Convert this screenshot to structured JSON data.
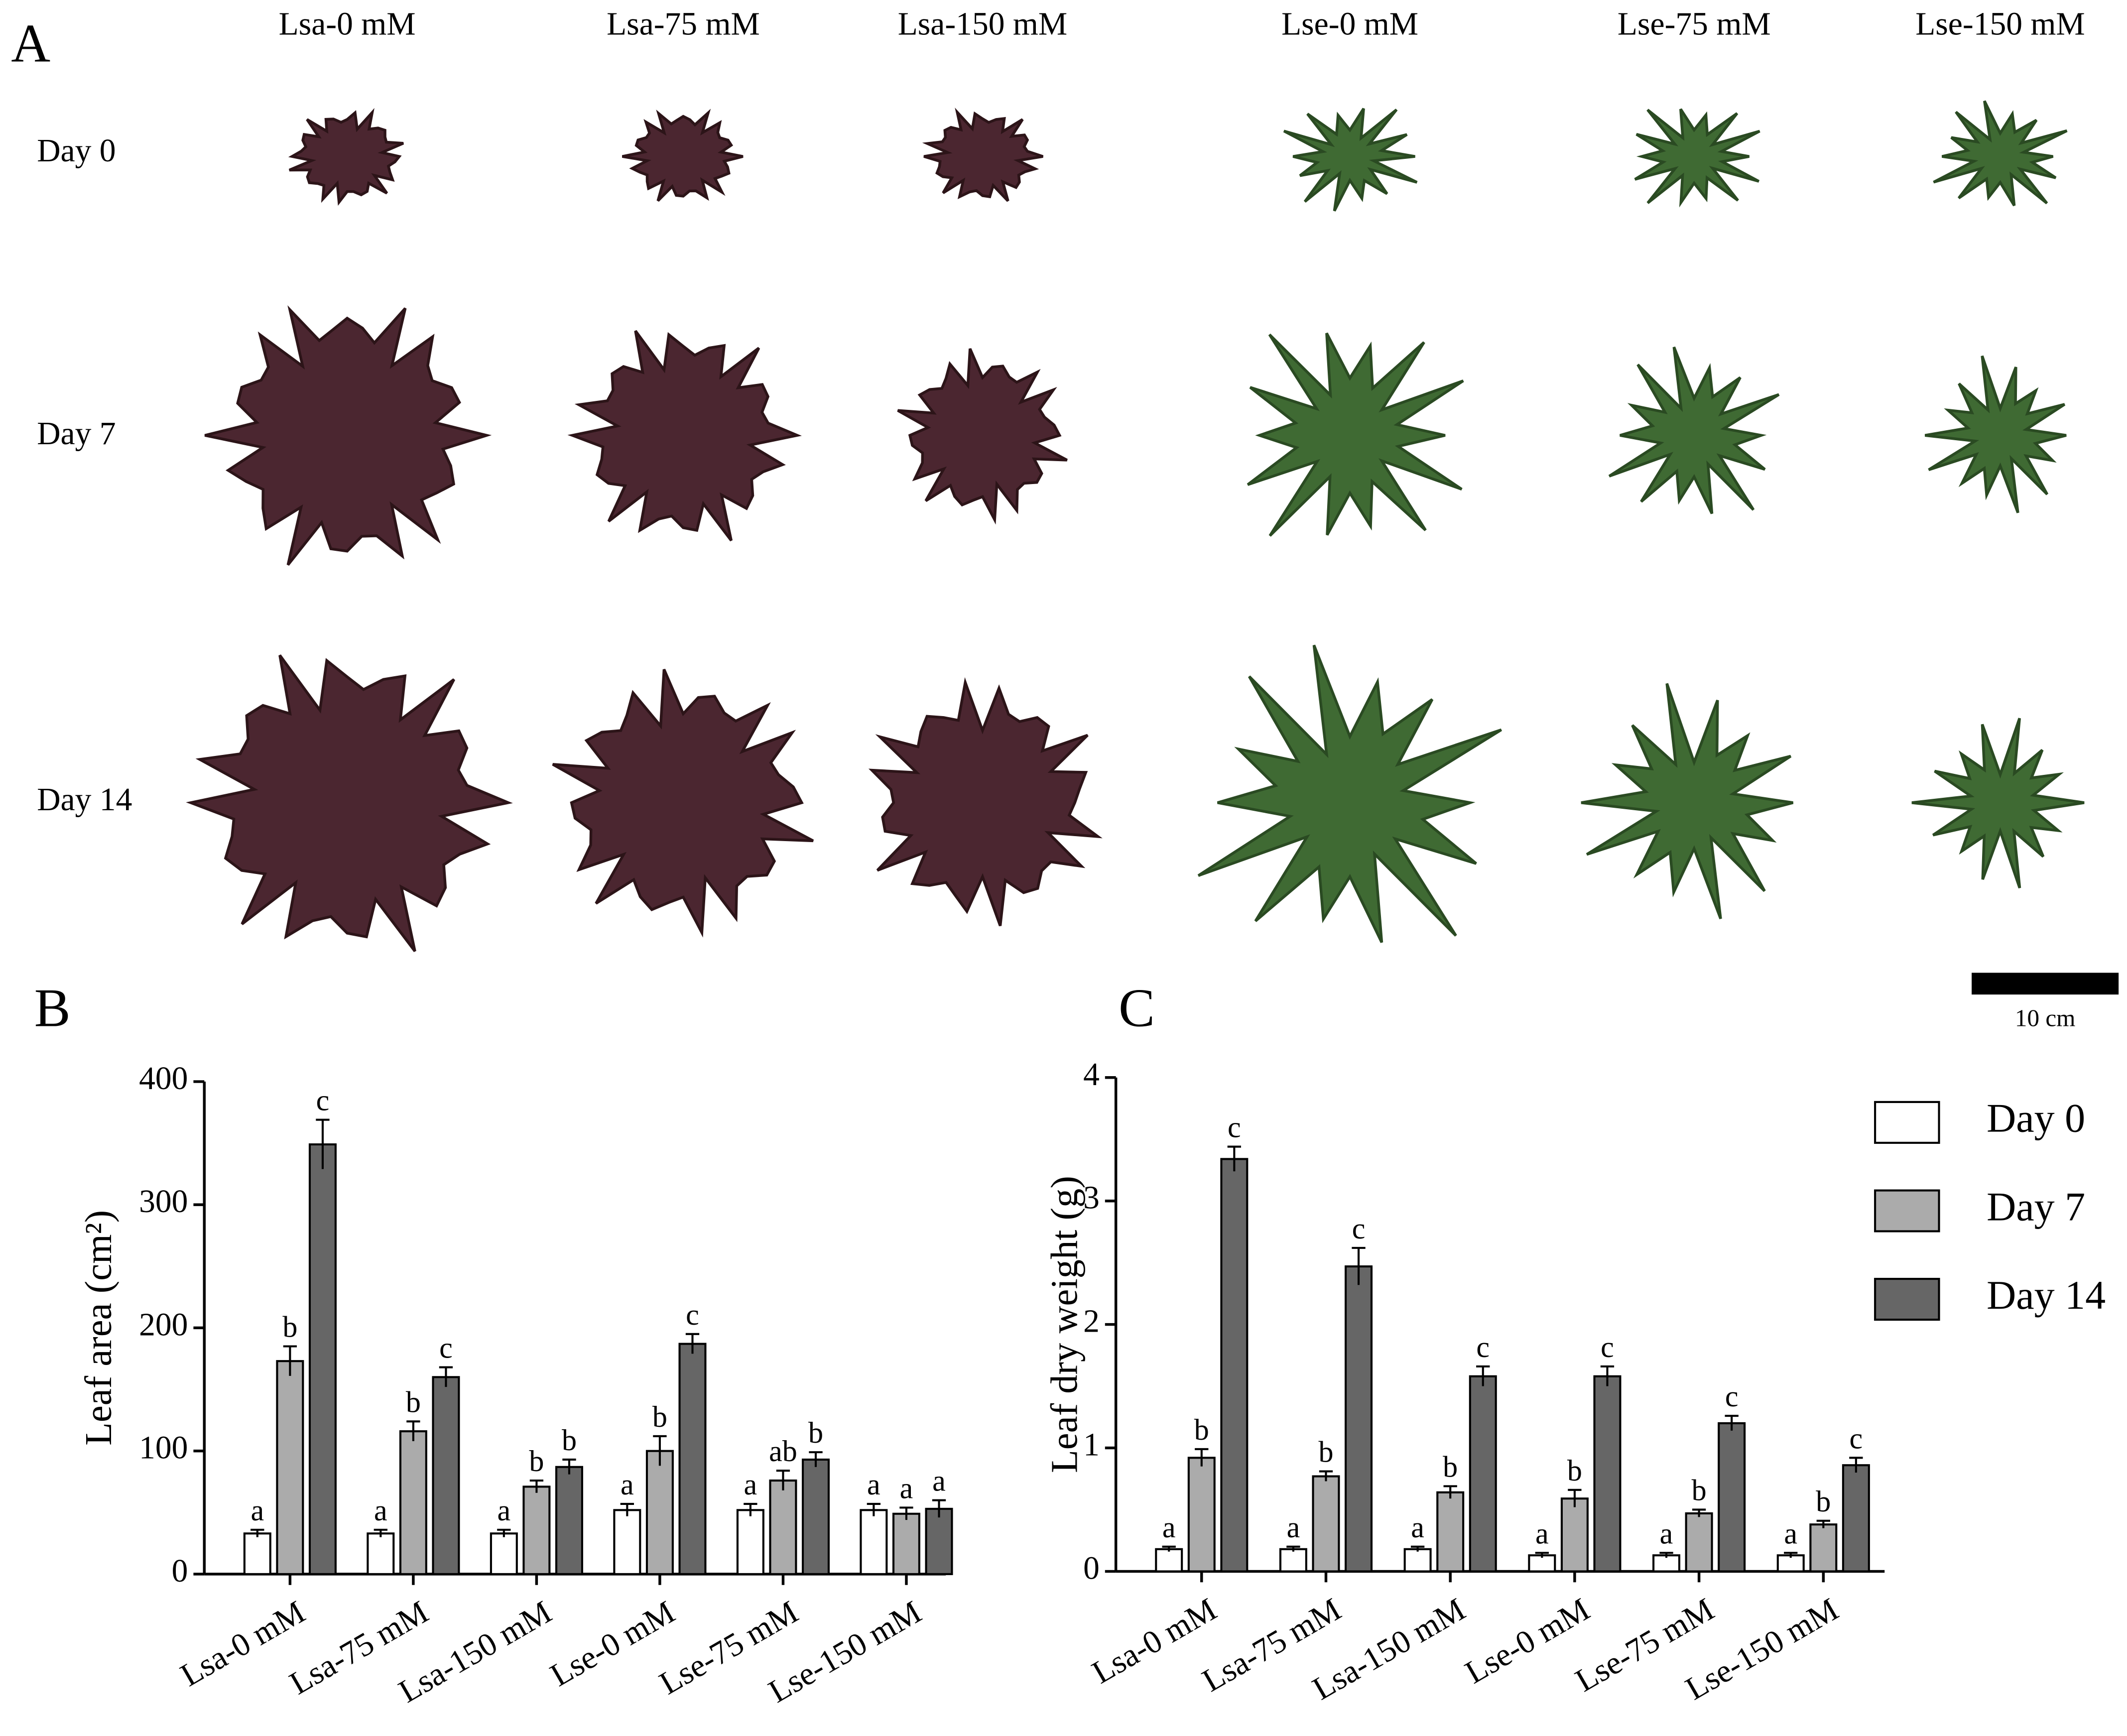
{
  "photo_panel": {
    "panel": "A",
    "columns": [
      "Lsa-0 mM",
      "Lsa-75 mM",
      "Lsa-150 mM",
      "Lse-0 mM",
      "Lse-75 mM",
      "Lse-150 mM"
    ],
    "rows": [
      "Day 0",
      "Day 7",
      "Day 14"
    ],
    "scale_bar": "10 cm"
  },
  "chart_data": [
    {
      "type": "bar",
      "panel": "B",
      "y_label": "Leaf area (cm²)",
      "categories": [
        "Lsa-0 mM",
        "Lsa-75 mM",
        "Lsa-150 mM",
        "Lse-0 mM",
        "Lse-75 mM",
        "Lse-150 mM"
      ],
      "series": [
        {
          "color": "#ffffff",
          "values": [
            33,
            33,
            33,
            52,
            52,
            52
          ],
          "errors": [
            3,
            3,
            3,
            5,
            5,
            5
          ],
          "letters": [
            "a",
            "a",
            "a",
            "a",
            "a",
            "a"
          ]
        },
        {
          "color": "#ababab",
          "values": [
            173,
            116,
            71,
            100,
            76,
            49
          ],
          "errors": [
            12,
            8,
            5,
            12,
            8,
            5
          ],
          "letters": [
            "b",
            "b",
            "b",
            "b",
            "ab",
            "a"
          ]
        },
        {
          "color": "#666666",
          "values": [
            349,
            160,
            87,
            187,
            93,
            53
          ],
          "errors": [
            20,
            8,
            6,
            8,
            6,
            7
          ],
          "letters": [
            "c",
            "c",
            "b",
            "c",
            "b",
            "a"
          ]
        }
      ],
      "ylim": [
        0,
        400
      ],
      "yticks": [
        0,
        100,
        200,
        300,
        400
      ]
    },
    {
      "type": "bar",
      "panel": "C",
      "y_label": "Leaf dry weight (g)",
      "categories": [
        "Lsa-0 mM",
        "Lsa-75 mM",
        "Lsa-150 mM",
        "Lse-0 mM",
        "Lse-75 mM",
        "Lse-150 mM"
      ],
      "series": [
        {
          "name": "Day 0",
          "color": "#ffffff",
          "values": [
            0.18,
            0.18,
            0.18,
            0.13,
            0.13,
            0.13
          ],
          "errors": [
            0.02,
            0.02,
            0.02,
            0.02,
            0.02,
            0.02
          ],
          "letters": [
            "a",
            "a",
            "a",
            "a",
            "a",
            "a"
          ]
        },
        {
          "name": "Day 7",
          "color": "#ababab",
          "values": [
            0.92,
            0.77,
            0.64,
            0.59,
            0.47,
            0.38
          ],
          "errors": [
            0.07,
            0.04,
            0.05,
            0.07,
            0.03,
            0.03
          ],
          "letters": [
            "b",
            "b",
            "b",
            "b",
            "b",
            "b"
          ]
        },
        {
          "name": "Day 14",
          "color": "#666666",
          "values": [
            3.34,
            2.47,
            1.58,
            1.58,
            1.2,
            0.86
          ],
          "errors": [
            0.1,
            0.15,
            0.08,
            0.08,
            0.06,
            0.06
          ],
          "letters": [
            "c",
            "c",
            "c",
            "c",
            "c",
            "c"
          ]
        }
      ],
      "ylim": [
        0,
        4
      ],
      "yticks": [
        0,
        1,
        2,
        3,
        4
      ],
      "legend": "right"
    }
  ]
}
